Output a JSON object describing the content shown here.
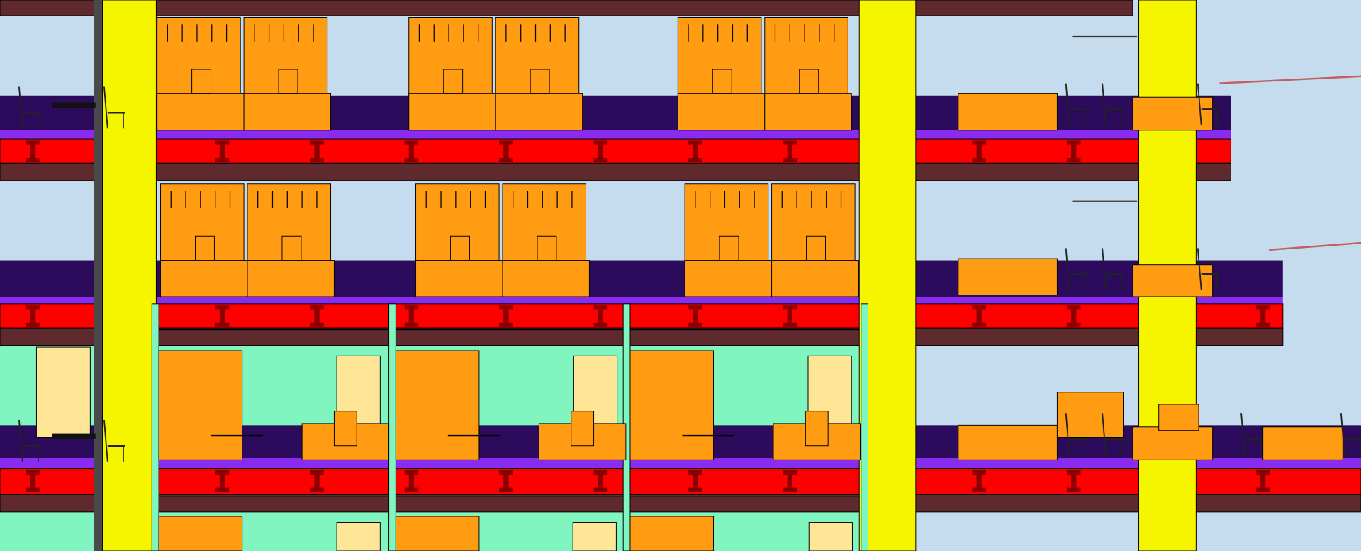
{
  "colors": {
    "sky": "#c5dcef",
    "room_green": "#80f5bf",
    "floor_dark": "#2c0b5c",
    "floor_line": "#8a2cf0",
    "beam_red": "#ff0000",
    "slab_brown": "#5e2a2e",
    "column_yellow": "#f5f500",
    "furniture_orange": "#ff9c12",
    "door_cream": "#ffe596",
    "outline": "#1a1a1a"
  }
}
